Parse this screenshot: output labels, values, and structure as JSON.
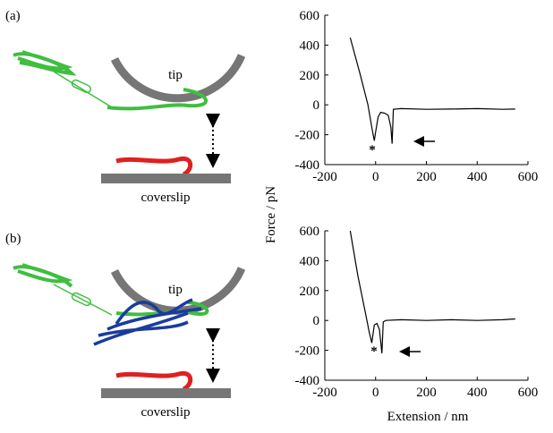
{
  "schematics": [
    {
      "label": "(a)",
      "tip": "tip",
      "substrate": "coverslip"
    },
    {
      "label": "(b)",
      "tip": "tip",
      "substrate": "coverslip"
    }
  ],
  "y_label": "Force / pN",
  "x_label": "Extension / nm",
  "chart_data": [
    {
      "type": "line",
      "annotation": "*",
      "x": [
        -100,
        -60,
        -30,
        -15,
        -5,
        0,
        10,
        20,
        35,
        50,
        60,
        65,
        70,
        100,
        200,
        300,
        400,
        500,
        550
      ],
      "series": [
        {
          "color": "#000000",
          "values": [
            450,
            200,
            0,
            -150,
            -240,
            -180,
            -80,
            -50,
            -55,
            -70,
            -150,
            -260,
            -30,
            -25,
            -30,
            -28,
            -25,
            -30,
            -28
          ]
        }
      ],
      "xlim": [
        -200,
        600
      ],
      "ylim": [
        -400,
        600
      ],
      "xticks": [
        -200,
        0,
        200,
        400,
        600
      ],
      "yticks": [
        -400,
        -200,
        0,
        200,
        400,
        600
      ]
    },
    {
      "type": "line",
      "annotation": "*",
      "x": [
        -100,
        -70,
        -40,
        -25,
        -15,
        -5,
        5,
        15,
        25,
        30,
        40,
        100,
        200,
        300,
        400,
        500,
        550
      ],
      "series": [
        {
          "color": "#000000",
          "values": [
            600,
            300,
            50,
            -80,
            -150,
            -30,
            -20,
            -60,
            -220,
            -10,
            0,
            5,
            0,
            5,
            0,
            5,
            10
          ]
        }
      ],
      "xlim": [
        -200,
        600
      ],
      "ylim": [
        -400,
        600
      ],
      "xticks": [
        -200,
        0,
        200,
        400,
        600
      ],
      "yticks": [
        -400,
        -200,
        0,
        200,
        400,
        600
      ]
    }
  ]
}
